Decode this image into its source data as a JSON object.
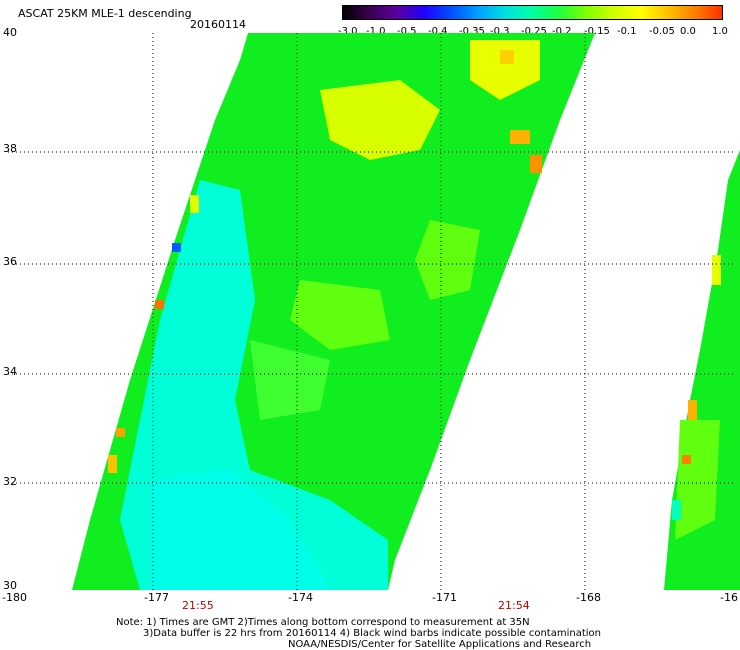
{
  "header": {
    "title": "ASCAT 25KM MLE-1 descending",
    "date": "20160114"
  },
  "colorbar": {
    "colors": [
      "#000000",
      "#3a0050",
      "#5a00a0",
      "#2000ff",
      "#0050ff",
      "#00a0ff",
      "#00e0e0",
      "#00ffa0",
      "#20ff40",
      "#80ff00",
      "#d0ff00",
      "#ffff00",
      "#ffc000",
      "#ff8000",
      "#ff3000"
    ],
    "labels": [
      "-3.0",
      "-1.0",
      "-0.5",
      "-0.4",
      "-0.35",
      "-0.3",
      "-0.25",
      "-0.2",
      "-0.15",
      "-0.1",
      "-0.05",
      "0.0",
      "1.0"
    ]
  },
  "axes": {
    "x_labels": [
      "-180",
      "-177",
      "-174",
      "-171",
      "-168",
      "-16"
    ],
    "y_labels": [
      "40",
      "38",
      "36",
      "34",
      "32",
      "30"
    ]
  },
  "times": [
    "21:55",
    "21:54"
  ],
  "notes": [
    "Note: 1) Times are GMT 2)Times along bottom correspond to measurement at 35N",
    "3)Data buffer is 22 hrs from 20160114 4) Black wind barbs indicate possible contamination",
    "NOAA/NESDIS/Center for Satellite Applications and Research"
  ],
  "colors": {
    "swath_green": "#10ee20",
    "swath_light": "#60ff10",
    "swath_yellow": "#d8ff00",
    "swath_cyan": "#00ffd8",
    "time_red": "#c00000"
  }
}
